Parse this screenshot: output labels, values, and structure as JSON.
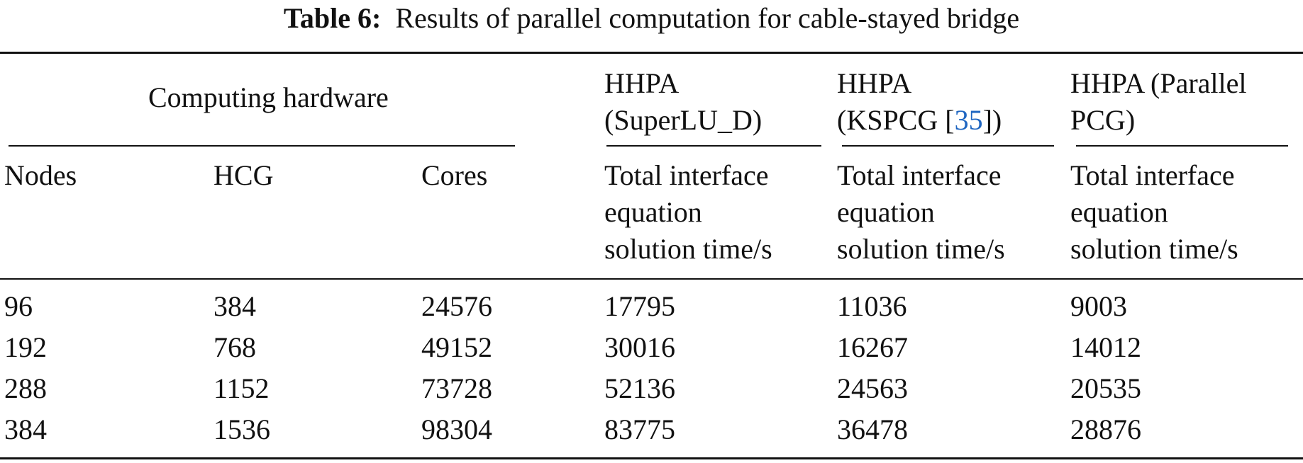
{
  "caption": {
    "label": "Table 6:",
    "text": "Results of parallel computation for cable-stayed bridge"
  },
  "header": {
    "group_hardware": "Computing hardware",
    "groups": [
      {
        "line1": "HHPA",
        "line2": "(SuperLU_D)"
      },
      {
        "line1": "HHPA",
        "line2_pre": "(KSPCG [",
        "line2_cite": "35",
        "line2_post": "])"
      },
      {
        "line1": "HHPA (Parallel",
        "line2": "PCG)"
      }
    ],
    "columns": [
      "Nodes",
      "HCG",
      "Cores"
    ],
    "time_label": [
      "Total interface",
      "equation",
      "solution time/s"
    ]
  },
  "rows": [
    [
      "96",
      "384",
      "24576",
      "17795",
      "11036",
      "9003"
    ],
    [
      "192",
      "768",
      "49152",
      "30016",
      "16267",
      "14012"
    ],
    [
      "288",
      "1152",
      "73728",
      "52136",
      "24563",
      "20535"
    ],
    [
      "384",
      "1536",
      "98304",
      "83775",
      "36478",
      "28876"
    ]
  ],
  "colors": {
    "citation_link": "#1f66c1"
  }
}
